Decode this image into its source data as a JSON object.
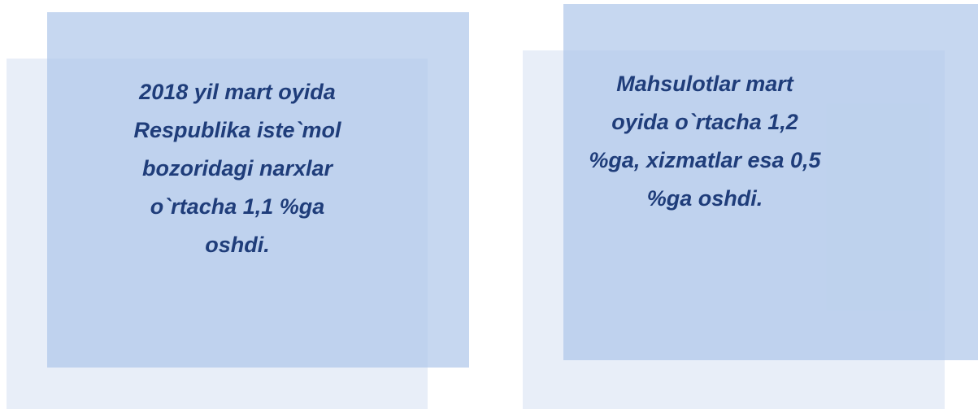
{
  "panels": [
    {
      "lines": [
        "2018 yil mart oyida",
        "Respublika iste`mol",
        "bozoridagi narxlar",
        "o`rtacha 1,1 %ga",
        "oshdi."
      ]
    },
    {
      "lines": [
        "Mahsulotlar mart",
        "oyida o`rtacha 1,2",
        "%ga, xizmatlar esa 0,5",
        "%ga oshdi."
      ]
    }
  ]
}
